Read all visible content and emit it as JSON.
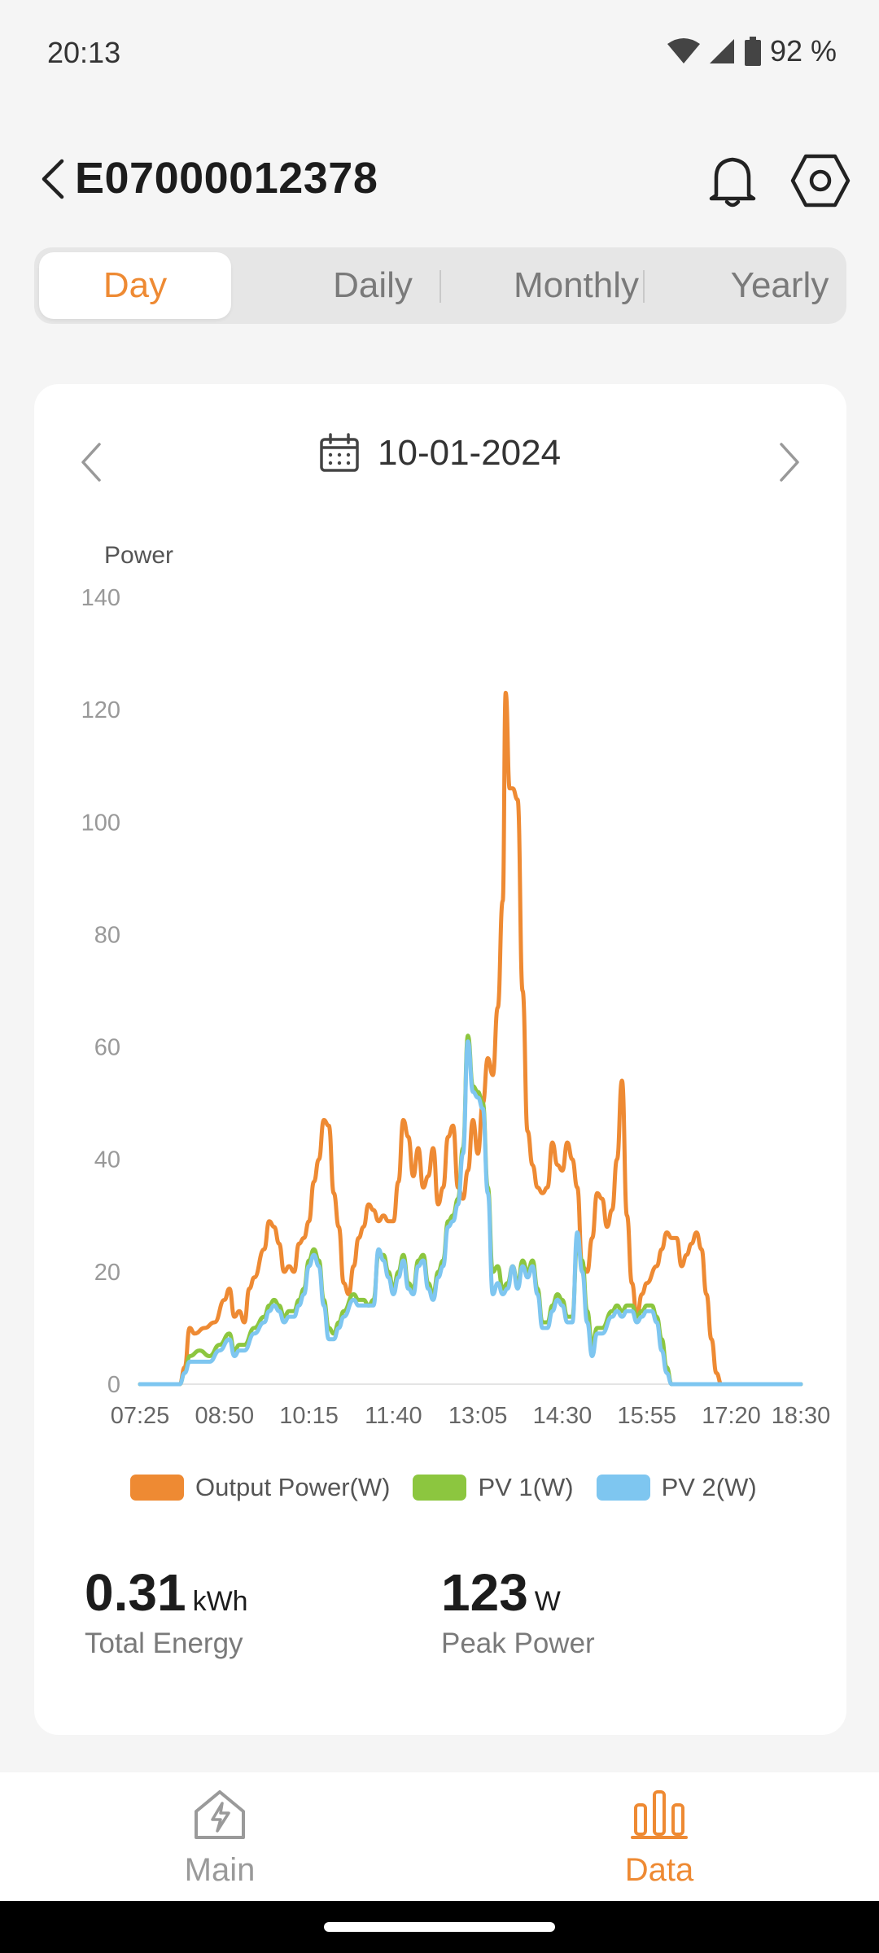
{
  "status_bar": {
    "time": "20:13",
    "battery": "92 %"
  },
  "header": {
    "title": "E07000012378"
  },
  "tabs": [
    {
      "label": "Day",
      "active": true
    },
    {
      "label": "Daily",
      "active": false
    },
    {
      "label": "Monthly",
      "active": false
    },
    {
      "label": "Yearly",
      "active": false
    }
  ],
  "date": "10-01-2024",
  "chart_data": {
    "type": "line",
    "ylabel": "Power",
    "ylim": [
      0,
      140
    ],
    "yticks": [
      0,
      20,
      40,
      60,
      80,
      100,
      120,
      140
    ],
    "xticks": [
      "07:25",
      "08:50",
      "10:15",
      "11:40",
      "13:05",
      "14:30",
      "15:55",
      "17:20",
      "18:30"
    ],
    "series": [
      {
        "name": "Output Power(W)",
        "color": "#ee8a33",
        "points": [
          [
            "07:25",
            0
          ],
          [
            "08:05",
            0
          ],
          [
            "08:10",
            3
          ],
          [
            "08:15",
            10
          ],
          [
            "08:20",
            9
          ],
          [
            "08:30",
            10
          ],
          [
            "08:40",
            11
          ],
          [
            "08:50",
            15
          ],
          [
            "08:55",
            17
          ],
          [
            "09:00",
            12
          ],
          [
            "09:05",
            13
          ],
          [
            "09:10",
            11
          ],
          [
            "09:15",
            17
          ],
          [
            "09:20",
            19
          ],
          [
            "09:30",
            24
          ],
          [
            "09:35",
            29
          ],
          [
            "09:40",
            28
          ],
          [
            "09:45",
            25
          ],
          [
            "09:50",
            20
          ],
          [
            "09:55",
            21
          ],
          [
            "10:00",
            20
          ],
          [
            "10:05",
            25
          ],
          [
            "10:10",
            26
          ],
          [
            "10:15",
            29
          ],
          [
            "10:20",
            36
          ],
          [
            "10:25",
            40
          ],
          [
            "10:30",
            47
          ],
          [
            "10:35",
            46
          ],
          [
            "10:40",
            34
          ],
          [
            "10:45",
            28
          ],
          [
            "10:50",
            18
          ],
          [
            "10:55",
            16
          ],
          [
            "11:00",
            21
          ],
          [
            "11:05",
            26
          ],
          [
            "11:10",
            28
          ],
          [
            "11:15",
            32
          ],
          [
            "11:20",
            31
          ],
          [
            "11:25",
            29
          ],
          [
            "11:30",
            30
          ],
          [
            "11:35",
            29
          ],
          [
            "11:40",
            29
          ],
          [
            "11:45",
            36
          ],
          [
            "11:50",
            47
          ],
          [
            "11:55",
            44
          ],
          [
            "12:00",
            37
          ],
          [
            "12:05",
            42
          ],
          [
            "12:10",
            35
          ],
          [
            "12:15",
            37
          ],
          [
            "12:20",
            42
          ],
          [
            "12:25",
            32
          ],
          [
            "12:30",
            35
          ],
          [
            "12:35",
            44
          ],
          [
            "12:40",
            46
          ],
          [
            "12:45",
            35
          ],
          [
            "12:50",
            33
          ],
          [
            "12:55",
            38
          ],
          [
            "13:00",
            47
          ],
          [
            "13:05",
            41
          ],
          [
            "13:10",
            50
          ],
          [
            "13:15",
            58
          ],
          [
            "13:20",
            55
          ],
          [
            "13:25",
            67
          ],
          [
            "13:30",
            86
          ],
          [
            "13:33",
            123
          ],
          [
            "13:37",
            106
          ],
          [
            "13:40",
            106
          ],
          [
            "13:45",
            104
          ],
          [
            "13:50",
            70
          ],
          [
            "13:55",
            45
          ],
          [
            "14:00",
            39
          ],
          [
            "14:05",
            35
          ],
          [
            "14:10",
            34
          ],
          [
            "14:15",
            35
          ],
          [
            "14:20",
            43
          ],
          [
            "14:25",
            39
          ],
          [
            "14:30",
            38
          ],
          [
            "14:35",
            43
          ],
          [
            "14:40",
            40
          ],
          [
            "14:45",
            35
          ],
          [
            "14:50",
            21
          ],
          [
            "14:55",
            20
          ],
          [
            "15:00",
            26
          ],
          [
            "15:05",
            34
          ],
          [
            "15:10",
            33
          ],
          [
            "15:15",
            28
          ],
          [
            "15:20",
            31
          ],
          [
            "15:25",
            40
          ],
          [
            "15:30",
            54
          ],
          [
            "15:35",
            30
          ],
          [
            "15:40",
            18
          ],
          [
            "15:45",
            12
          ],
          [
            "15:50",
            16
          ],
          [
            "15:55",
            18
          ],
          [
            "16:05",
            21
          ],
          [
            "16:10",
            24
          ],
          [
            "16:15",
            27
          ],
          [
            "16:20",
            26
          ],
          [
            "16:25",
            26
          ],
          [
            "16:30",
            21
          ],
          [
            "16:35",
            23
          ],
          [
            "16:40",
            25
          ],
          [
            "16:45",
            27
          ],
          [
            "16:50",
            24
          ],
          [
            "16:55",
            16
          ],
          [
            "17:00",
            8
          ],
          [
            "17:05",
            2
          ],
          [
            "17:10",
            0
          ],
          [
            "18:30",
            0
          ]
        ]
      },
      {
        "name": "PV 1(W)",
        "color": "#8cc63f",
        "points": [
          [
            "07:25",
            0
          ],
          [
            "08:05",
            0
          ],
          [
            "08:10",
            2
          ],
          [
            "08:15",
            5
          ],
          [
            "08:25",
            6
          ],
          [
            "08:35",
            5
          ],
          [
            "08:45",
            7
          ],
          [
            "08:55",
            9
          ],
          [
            "09:00",
            6
          ],
          [
            "09:05",
            7
          ],
          [
            "09:10",
            7
          ],
          [
            "09:20",
            10
          ],
          [
            "09:30",
            12
          ],
          [
            "09:35",
            14
          ],
          [
            "09:40",
            15
          ],
          [
            "09:45",
            14
          ],
          [
            "09:50",
            12
          ],
          [
            "09:55",
            13
          ],
          [
            "10:00",
            13
          ],
          [
            "10:05",
            15
          ],
          [
            "10:10",
            17
          ],
          [
            "10:15",
            22
          ],
          [
            "10:20",
            24
          ],
          [
            "10:25",
            22
          ],
          [
            "10:30",
            15
          ],
          [
            "10:35",
            10
          ],
          [
            "10:40",
            9
          ],
          [
            "10:45",
            11
          ],
          [
            "10:50",
            13
          ],
          [
            "11:00",
            16
          ],
          [
            "11:05",
            15
          ],
          [
            "11:10",
            15
          ],
          [
            "11:15",
            14
          ],
          [
            "11:20",
            15
          ],
          [
            "11:25",
            23
          ],
          [
            "11:30",
            23
          ],
          [
            "11:35",
            20
          ],
          [
            "11:40",
            17
          ],
          [
            "11:45",
            20
          ],
          [
            "11:50",
            23
          ],
          [
            "11:55",
            18
          ],
          [
            "12:00",
            17
          ],
          [
            "12:05",
            22
          ],
          [
            "12:10",
            23
          ],
          [
            "12:15",
            18
          ],
          [
            "12:20",
            16
          ],
          [
            "12:25",
            20
          ],
          [
            "12:30",
            22
          ],
          [
            "12:35",
            29
          ],
          [
            "12:40",
            30
          ],
          [
            "12:45",
            33
          ],
          [
            "12:50",
            42
          ],
          [
            "12:55",
            62
          ],
          [
            "13:00",
            53
          ],
          [
            "13:05",
            52
          ],
          [
            "13:10",
            50
          ],
          [
            "13:15",
            35
          ],
          [
            "13:20",
            20
          ],
          [
            "13:25",
            21
          ],
          [
            "13:30",
            17
          ],
          [
            "13:35",
            18
          ],
          [
            "13:40",
            21
          ],
          [
            "13:45",
            18
          ],
          [
            "13:50",
            22
          ],
          [
            "13:55",
            20
          ],
          [
            "14:00",
            22
          ],
          [
            "14:05",
            17
          ],
          [
            "14:10",
            11
          ],
          [
            "14:15",
            11
          ],
          [
            "14:20",
            14
          ],
          [
            "14:25",
            16
          ],
          [
            "14:30",
            15
          ],
          [
            "14:35",
            12
          ],
          [
            "14:40",
            12
          ],
          [
            "14:45",
            25
          ],
          [
            "14:50",
            22
          ],
          [
            "14:55",
            13
          ],
          [
            "15:00",
            7
          ],
          [
            "15:05",
            10
          ],
          [
            "15:10",
            10
          ],
          [
            "15:20",
            13
          ],
          [
            "15:25",
            14
          ],
          [
            "15:30",
            13
          ],
          [
            "15:35",
            14
          ],
          [
            "15:40",
            14
          ],
          [
            "15:45",
            12
          ],
          [
            "15:50",
            13
          ],
          [
            "15:55",
            14
          ],
          [
            "16:00",
            14
          ],
          [
            "16:05",
            12
          ],
          [
            "16:10",
            8
          ],
          [
            "16:15",
            3
          ],
          [
            "16:20",
            0
          ],
          [
            "18:30",
            0
          ]
        ]
      },
      {
        "name": "PV 2(W)",
        "color": "#7ec6f0",
        "points": [
          [
            "07:25",
            0
          ],
          [
            "08:05",
            0
          ],
          [
            "08:10",
            2
          ],
          [
            "08:15",
            4
          ],
          [
            "08:25",
            4
          ],
          [
            "08:35",
            4
          ],
          [
            "08:45",
            6
          ],
          [
            "08:55",
            8
          ],
          [
            "09:00",
            5
          ],
          [
            "09:05",
            6
          ],
          [
            "09:10",
            6
          ],
          [
            "09:20",
            9
          ],
          [
            "09:30",
            11
          ],
          [
            "09:35",
            13
          ],
          [
            "09:40",
            14
          ],
          [
            "09:45",
            13
          ],
          [
            "09:50",
            11
          ],
          [
            "09:55",
            12
          ],
          [
            "10:00",
            12
          ],
          [
            "10:05",
            14
          ],
          [
            "10:10",
            16
          ],
          [
            "10:15",
            21
          ],
          [
            "10:20",
            23
          ],
          [
            "10:25",
            21
          ],
          [
            "10:30",
            14
          ],
          [
            "10:35",
            8
          ],
          [
            "10:40",
            8
          ],
          [
            "10:45",
            10
          ],
          [
            "10:50",
            12
          ],
          [
            "11:00",
            15
          ],
          [
            "11:05",
            14
          ],
          [
            "11:10",
            14
          ],
          [
            "11:15",
            14
          ],
          [
            "11:20",
            14
          ],
          [
            "11:25",
            24
          ],
          [
            "11:30",
            22
          ],
          [
            "11:35",
            19
          ],
          [
            "11:40",
            16
          ],
          [
            "11:45",
            19
          ],
          [
            "11:50",
            22
          ],
          [
            "11:55",
            17
          ],
          [
            "12:00",
            16
          ],
          [
            "12:05",
            21
          ],
          [
            "12:10",
            22
          ],
          [
            "12:15",
            17
          ],
          [
            "12:20",
            15
          ],
          [
            "12:25",
            19
          ],
          [
            "12:30",
            21
          ],
          [
            "12:35",
            28
          ],
          [
            "12:40",
            29
          ],
          [
            "12:45",
            32
          ],
          [
            "12:50",
            41
          ],
          [
            "12:55",
            61
          ],
          [
            "13:00",
            52
          ],
          [
            "13:05",
            51
          ],
          [
            "13:10",
            49
          ],
          [
            "13:15",
            34
          ],
          [
            "13:20",
            16
          ],
          [
            "13:25",
            18
          ],
          [
            "13:30",
            16
          ],
          [
            "13:35",
            17
          ],
          [
            "13:40",
            21
          ],
          [
            "13:45",
            17
          ],
          [
            "13:50",
            21
          ],
          [
            "13:55",
            19
          ],
          [
            "14:00",
            21
          ],
          [
            "14:05",
            16
          ],
          [
            "14:10",
            10
          ],
          [
            "14:15",
            10
          ],
          [
            "14:20",
            13
          ],
          [
            "14:25",
            15
          ],
          [
            "14:30",
            14
          ],
          [
            "14:35",
            11
          ],
          [
            "14:40",
            11
          ],
          [
            "14:45",
            27
          ],
          [
            "14:50",
            20
          ],
          [
            "14:55",
            11
          ],
          [
            "15:00",
            5
          ],
          [
            "15:05",
            9
          ],
          [
            "15:10",
            9
          ],
          [
            "15:20",
            12
          ],
          [
            "15:25",
            13
          ],
          [
            "15:30",
            12
          ],
          [
            "15:35",
            13
          ],
          [
            "15:40",
            13
          ],
          [
            "15:45",
            11
          ],
          [
            "15:50",
            12
          ],
          [
            "15:55",
            13
          ],
          [
            "16:00",
            13
          ],
          [
            "16:05",
            11
          ],
          [
            "16:10",
            6
          ],
          [
            "16:15",
            2
          ],
          [
            "16:20",
            0
          ],
          [
            "18:30",
            0
          ]
        ]
      }
    ]
  },
  "stats": {
    "total_energy": {
      "value": "0.31",
      "unit": "kWh",
      "label": "Total Energy"
    },
    "peak_power": {
      "value": "123",
      "unit": "W",
      "label": "Peak Power"
    }
  },
  "bottom_nav": {
    "items": [
      {
        "label": "Main",
        "active": false
      },
      {
        "label": "Data",
        "active": true
      }
    ]
  },
  "colors": {
    "accent": "#ee8a33",
    "inactive": "#9a9a9a"
  }
}
